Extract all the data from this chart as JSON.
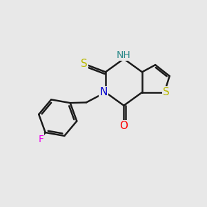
{
  "bg_color": "#e8e8e8",
  "atom_colors": {
    "C": "#000000",
    "N_blue": "#0000cd",
    "N_teal": "#2e8b8b",
    "S": "#b8b800",
    "O": "#ff0000",
    "F": "#ee00ee"
  },
  "bond_color": "#1a1a1a",
  "bond_width": 1.8,
  "font_size": 10
}
